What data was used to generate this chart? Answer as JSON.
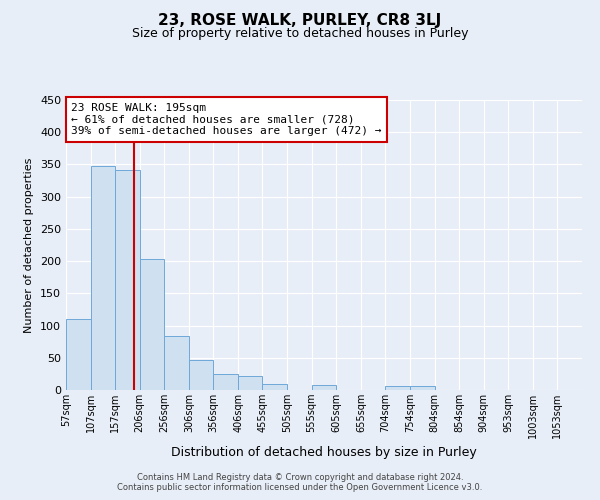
{
  "title": "23, ROSE WALK, PURLEY, CR8 3LJ",
  "subtitle": "Size of property relative to detached houses in Purley",
  "bar_values": [
    110,
    347,
    342,
    203,
    84,
    46,
    25,
    21,
    10,
    0,
    7,
    0,
    0,
    6,
    6
  ],
  "bar_left_edges": [
    57,
    107,
    157,
    206,
    256,
    306,
    356,
    406,
    455,
    505,
    555,
    605,
    655,
    704,
    754
  ],
  "bar_width": [
    50,
    50,
    49,
    50,
    50,
    50,
    50,
    49,
    50,
    50,
    50,
    50,
    49,
    50,
    50
  ],
  "x_tick_labels": [
    "57sqm",
    "107sqm",
    "157sqm",
    "206sqm",
    "256sqm",
    "306sqm",
    "356sqm",
    "406sqm",
    "455sqm",
    "505sqm",
    "555sqm",
    "605sqm",
    "655sqm",
    "704sqm",
    "754sqm",
    "804sqm",
    "854sqm",
    "904sqm",
    "953sqm",
    "1003sqm",
    "1053sqm"
  ],
  "x_tick_positions": [
    57,
    107,
    157,
    206,
    256,
    306,
    356,
    406,
    455,
    505,
    555,
    605,
    655,
    704,
    754,
    804,
    854,
    904,
    953,
    1003,
    1053
  ],
  "ylim": [
    0,
    450
  ],
  "yticks": [
    0,
    50,
    100,
    150,
    200,
    250,
    300,
    350,
    400,
    450
  ],
  "ylabel": "Number of detached properties",
  "xlabel": "Distribution of detached houses by size in Purley",
  "bar_color": "#cfe0f0",
  "bar_edgecolor": "#6ea8d8",
  "vline_x": 195,
  "vline_color": "#cc0000",
  "annotation_text": "23 ROSE WALK: 195sqm\n← 61% of detached houses are smaller (728)\n39% of semi-detached houses are larger (472) →",
  "annotation_box_color": "#cc0000",
  "background_color": "#e8eef7",
  "grid_color": "#ffffff",
  "footer_line1": "Contains HM Land Registry data © Crown copyright and database right 2024.",
  "footer_line2": "Contains public sector information licensed under the Open Government Licence v3.0."
}
